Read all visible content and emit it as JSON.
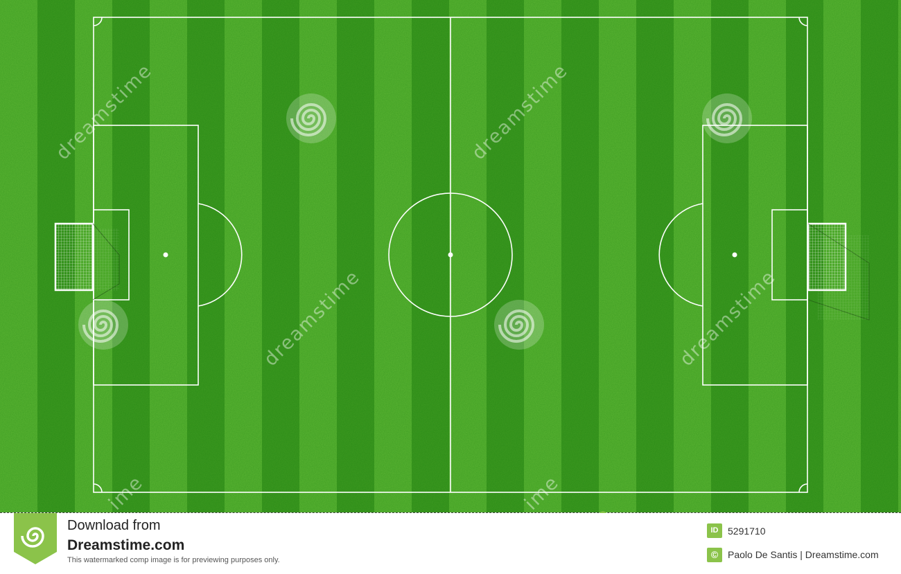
{
  "footer": {
    "download_line": "Download from",
    "site_name": "Dreamstime.com",
    "notice": "This watermarked comp image is for previewing purposes only.",
    "id_badge": "ID",
    "image_id": "5291710",
    "copyright_badge": "©",
    "credit": "Paolo De Santis | Dreamstime.com"
  },
  "watermark": {
    "text": "dreamstime",
    "short_text": "ime"
  },
  "colors": {
    "grass_dark": "#3f9a22",
    "grass_light": "#5cb534",
    "line": "#ffffff",
    "badge_green": "#8bc34a"
  }
}
